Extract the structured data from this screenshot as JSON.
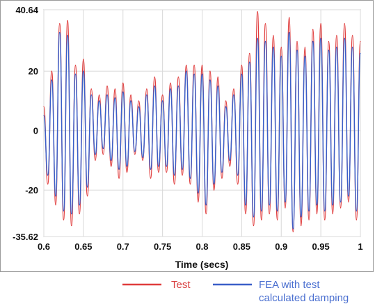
{
  "chart_data": {
    "type": "line",
    "title": "",
    "xlabel": "Time (secs)",
    "ylabel": "",
    "xlim": [
      0.6,
      1.0
    ],
    "ylim": [
      -35.62,
      40.64
    ],
    "grid": true,
    "legend_position": "bottom",
    "x_tick_labels": [
      "0.6",
      "0.65",
      "0.7",
      "0.75",
      "0.8",
      "0.85",
      "0.9",
      "0.95",
      "1"
    ],
    "x_tick_values": [
      0.6,
      0.65,
      0.7,
      0.75,
      0.8,
      0.85,
      0.9,
      0.95,
      1.0
    ],
    "y_tick_labels": [
      "40.64",
      "20",
      "0",
      "-20",
      "-35.62"
    ],
    "y_tick_values": [
      40.64,
      20,
      0,
      -20,
      -35.62
    ],
    "series": [
      {
        "name": "Test",
        "color": "#e03c3c",
        "x": [
          0.6,
          0.605,
          0.61,
          0.615,
          0.62,
          0.625,
          0.63,
          0.635,
          0.64,
          0.645,
          0.65,
          0.655,
          0.66,
          0.665,
          0.67,
          0.675,
          0.68,
          0.685,
          0.69,
          0.695,
          0.7,
          0.705,
          0.71,
          0.715,
          0.72,
          0.725,
          0.73,
          0.735,
          0.74,
          0.745,
          0.75,
          0.755,
          0.76,
          0.765,
          0.77,
          0.775,
          0.78,
          0.785,
          0.79,
          0.795,
          0.8,
          0.805,
          0.81,
          0.815,
          0.82,
          0.825,
          0.83,
          0.835,
          0.84,
          0.845,
          0.85,
          0.855,
          0.86,
          0.865,
          0.87,
          0.875,
          0.88,
          0.885,
          0.89,
          0.895,
          0.9,
          0.905,
          0.91,
          0.915,
          0.92,
          0.925,
          0.93,
          0.935,
          0.94,
          0.945,
          0.95,
          0.955,
          0.96,
          0.965,
          0.97,
          0.975,
          0.98,
          0.985,
          0.99,
          0.995,
          1.0
        ],
        "values": [
          8,
          -18,
          20,
          -25,
          36,
          -30,
          37,
          -32,
          22,
          -28,
          24,
          -22,
          14,
          -10,
          12,
          -8,
          15,
          -12,
          14,
          -16,
          16,
          -14,
          12,
          -8,
          10,
          -10,
          14,
          -16,
          18,
          -14,
          12,
          -14,
          16,
          -18,
          18,
          -15,
          22,
          -18,
          22,
          -24,
          22,
          -28,
          20,
          -20,
          18,
          -16,
          10,
          -12,
          14,
          -18,
          22,
          -28,
          26,
          -32,
          40,
          -30,
          36,
          -28,
          32,
          -30,
          28,
          -26,
          38,
          -34,
          30,
          -32,
          28,
          -30,
          34,
          -28,
          36,
          -30,
          30,
          -28,
          32,
          -26,
          36,
          -24,
          32,
          -30,
          30
        ]
      },
      {
        "name": "FEA with test calculated damping",
        "color": "#3a5fc8",
        "x": [
          0.6,
          0.605,
          0.61,
          0.615,
          0.62,
          0.625,
          0.63,
          0.635,
          0.64,
          0.645,
          0.65,
          0.655,
          0.66,
          0.665,
          0.67,
          0.675,
          0.68,
          0.685,
          0.69,
          0.695,
          0.7,
          0.705,
          0.71,
          0.715,
          0.72,
          0.725,
          0.73,
          0.735,
          0.74,
          0.745,
          0.75,
          0.755,
          0.76,
          0.765,
          0.77,
          0.775,
          0.78,
          0.785,
          0.79,
          0.795,
          0.8,
          0.805,
          0.81,
          0.815,
          0.82,
          0.825,
          0.83,
          0.835,
          0.84,
          0.845,
          0.85,
          0.855,
          0.86,
          0.865,
          0.87,
          0.875,
          0.88,
          0.885,
          0.89,
          0.895,
          0.9,
          0.905,
          0.91,
          0.915,
          0.92,
          0.925,
          0.93,
          0.935,
          0.94,
          0.945,
          0.95,
          0.955,
          0.96,
          0.965,
          0.97,
          0.975,
          0.98,
          0.985,
          0.99,
          0.995,
          1.0
        ],
        "values": [
          5,
          -15,
          17,
          -22,
          33,
          -27,
          32,
          -28,
          19,
          -25,
          20,
          -19,
          12,
          -8,
          10,
          -6,
          12,
          -10,
          11,
          -13,
          13,
          -12,
          10,
          -7,
          8,
          -9,
          12,
          -13,
          15,
          -12,
          10,
          -12,
          14,
          -15,
          15,
          -13,
          20,
          -16,
          19,
          -21,
          19,
          -25,
          17,
          -18,
          15,
          -14,
          8,
          -10,
          12,
          -15,
          19,
          -25,
          23,
          -29,
          31,
          -27,
          30,
          -25,
          28,
          -27,
          25,
          -24,
          33,
          -33,
          27,
          -29,
          25,
          -27,
          30,
          -25,
          31,
          -27,
          27,
          -25,
          28,
          -24,
          31,
          -22,
          28,
          -27,
          26
        ]
      }
    ]
  },
  "legend": {
    "items": [
      {
        "label": "Test",
        "color": "#e03c3c"
      },
      {
        "label_line1": "FEA with test",
        "label_line2": "calculated damping",
        "color": "#3a5fc8"
      }
    ]
  }
}
